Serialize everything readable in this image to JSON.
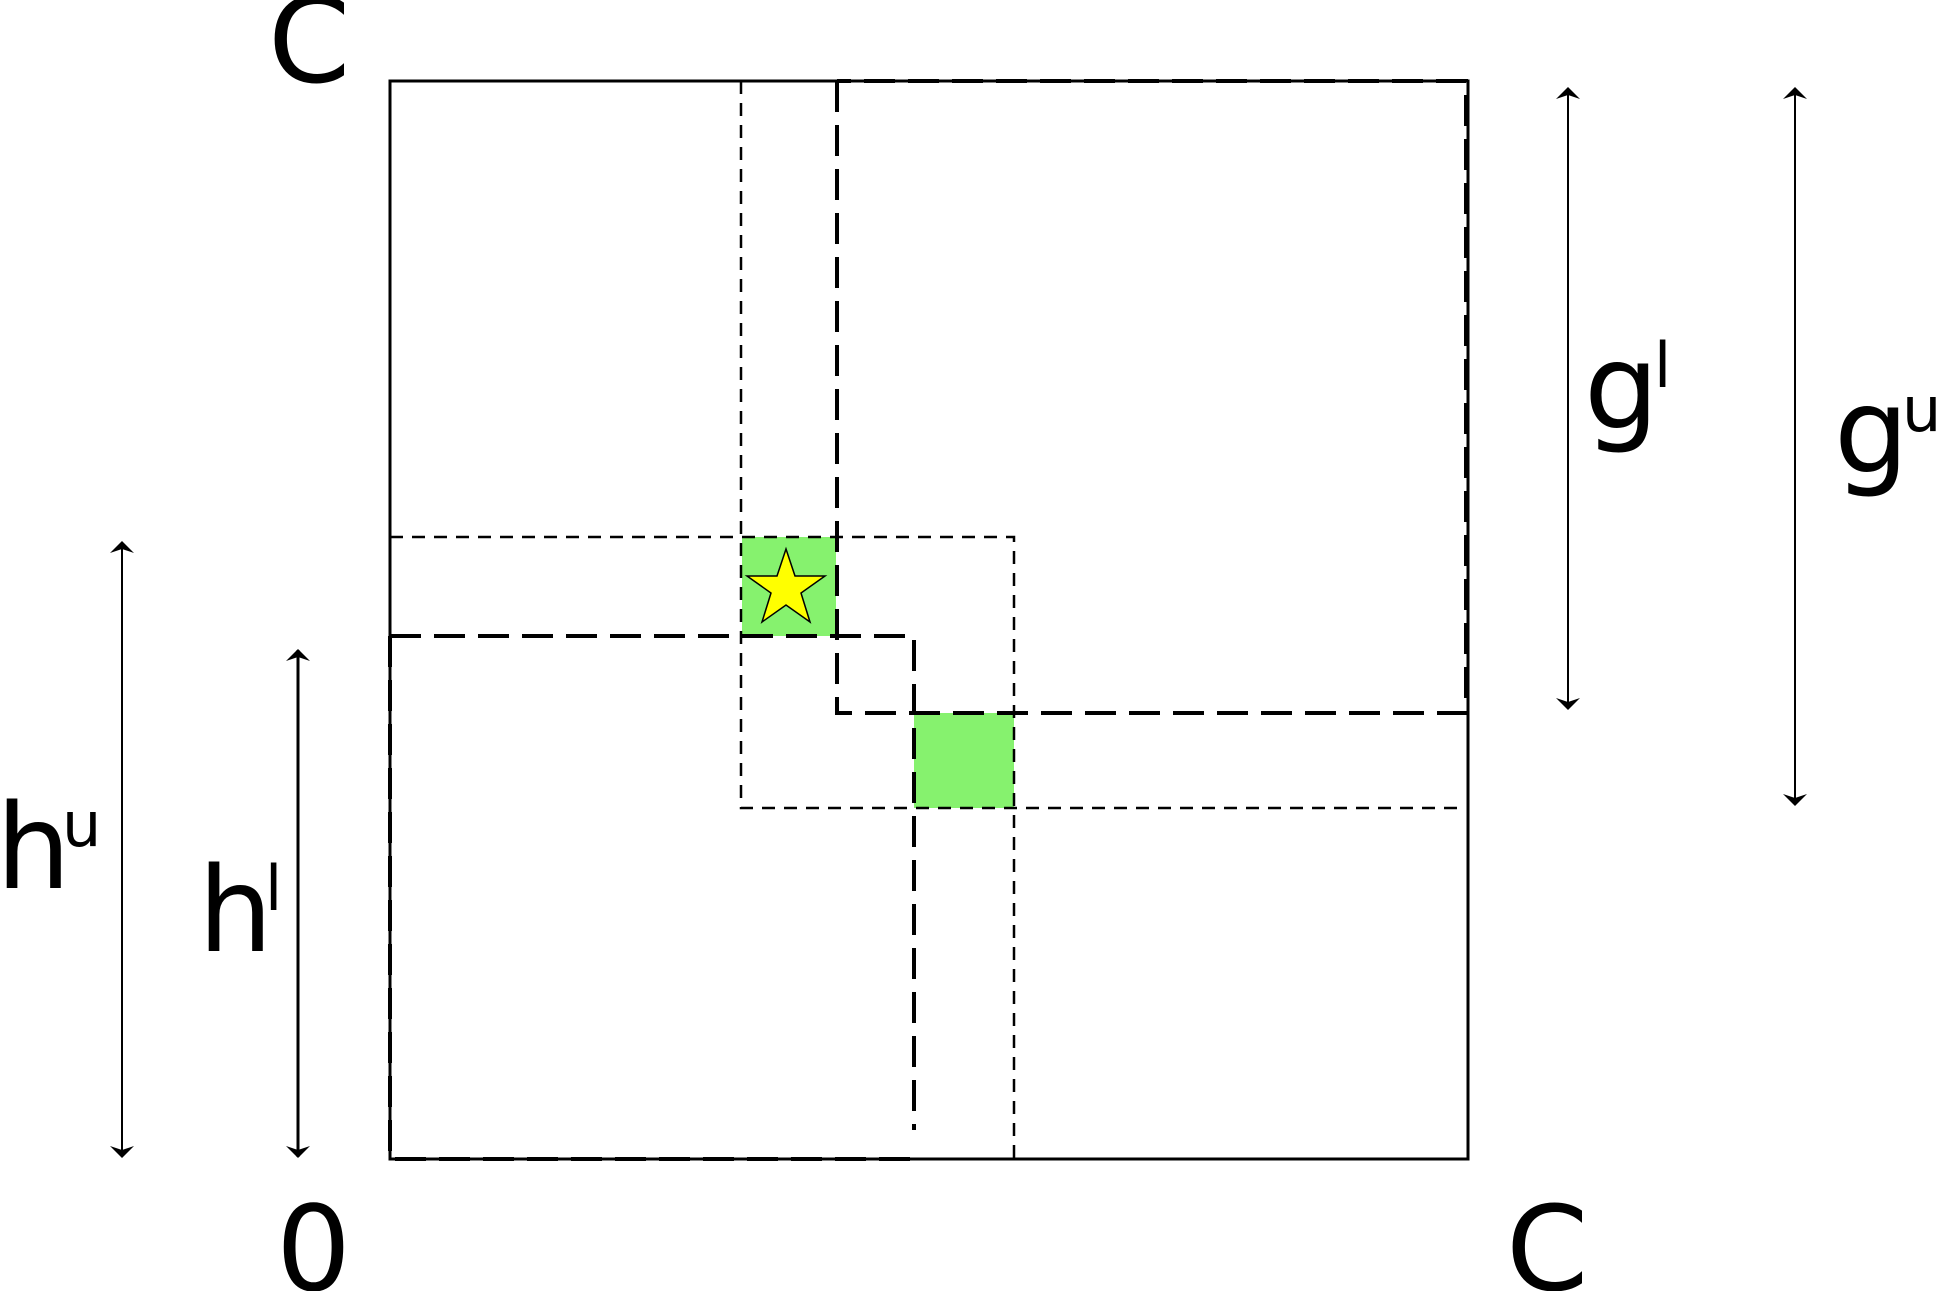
{
  "labels": {
    "top_left": "C",
    "bottom_left": "0",
    "bottom_right": "C",
    "g_lower": {
      "base": "g",
      "sup": "l"
    },
    "g_upper": {
      "base": "g",
      "sup": "u"
    },
    "h_lower": {
      "base": "h",
      "sup": "l"
    },
    "h_upper": {
      "base": "h",
      "sup": "u"
    }
  },
  "colors": {
    "line": "#000000",
    "cell_fill": "#86f26e",
    "star_fill": "#ffff00"
  },
  "icons": {
    "marker": "star-icon"
  }
}
